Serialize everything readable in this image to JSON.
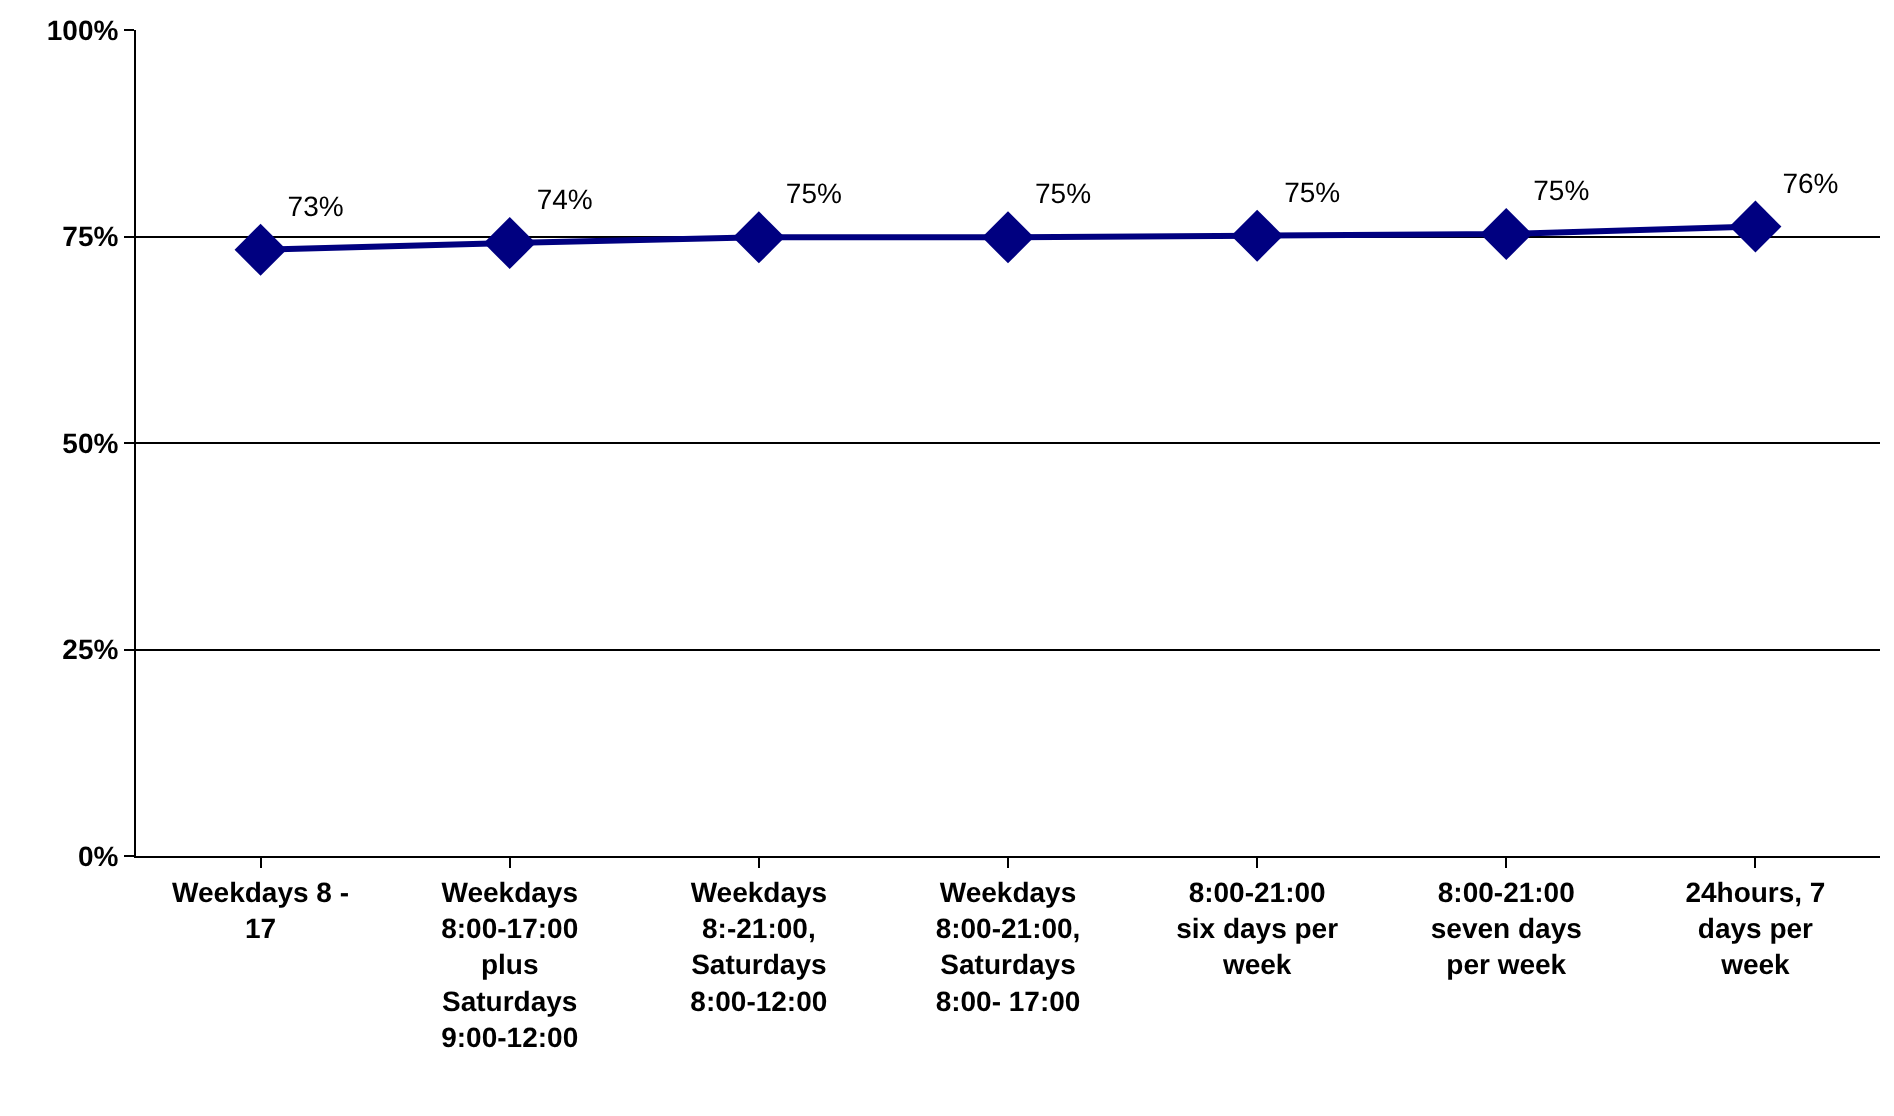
{
  "chart_data": {
    "type": "line",
    "categories": [
      "Weekdays 8 - 17",
      "Weekdays 8:00-17:00 plus Saturdays 9:00-12:00",
      "Weekdays 8:-21:00, Saturdays 8:00-12:00",
      "Weekdays 8:00-21:00, Saturdays 8:00- 17:00",
      "8:00-21:00 six days per week",
      "8:00-21:00 seven days per week",
      "24hours, 7 days per week"
    ],
    "series": [
      {
        "color": "#000080",
        "values": [
          73.4,
          74.2,
          74.9,
          74.9,
          75.1,
          75.3,
          76.2
        ],
        "value_labels": [
          "73%",
          "74%",
          "75%",
          "75%",
          "75%",
          "75%",
          "76%"
        ]
      }
    ],
    "ylim": [
      0,
      100
    ],
    "yticks": [
      {
        "value": 0,
        "label": "0%"
      },
      {
        "value": 25,
        "label": "25%"
      },
      {
        "value": 50,
        "label": "50%"
      },
      {
        "value": 75,
        "label": "75%"
      },
      {
        "value": 100,
        "label": "100%"
      }
    ],
    "grid": "y",
    "marker": "diamond",
    "line_style": "solid",
    "legend": false
  }
}
